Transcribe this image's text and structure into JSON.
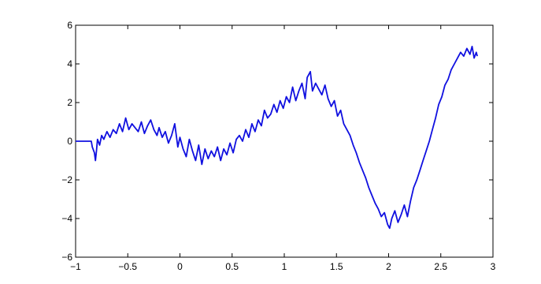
{
  "chart_data": {
    "type": "line",
    "title": "",
    "xlabel": "",
    "ylabel": "",
    "xlim": [
      -1,
      3
    ],
    "ylim": [
      -6,
      6
    ],
    "grid": false,
    "x_ticks": [
      -1,
      -0.5,
      0,
      0.5,
      1,
      1.5,
      2,
      2.5,
      3
    ],
    "x_tick_labels": [
      "−1",
      "−0.5",
      "0",
      "0.5",
      "1",
      "1.5",
      "2",
      "2.5",
      "3"
    ],
    "y_ticks": [
      -6,
      -4,
      -2,
      0,
      2,
      4,
      6
    ],
    "y_tick_labels": [
      "−6",
      "−4",
      "−2",
      "0",
      "2",
      "4",
      "6"
    ],
    "series": [
      {
        "color": "#1010e0",
        "x": [
          -1.0,
          -0.95,
          -0.9,
          -0.85,
          -0.84,
          -0.82,
          -0.81,
          -0.8,
          -0.79,
          -0.77,
          -0.75,
          -0.73,
          -0.7,
          -0.67,
          -0.64,
          -0.61,
          -0.58,
          -0.55,
          -0.52,
          -0.49,
          -0.46,
          -0.43,
          -0.4,
          -0.37,
          -0.34,
          -0.31,
          -0.28,
          -0.25,
          -0.22,
          -0.2,
          -0.17,
          -0.14,
          -0.11,
          -0.08,
          -0.05,
          -0.02,
          0.0,
          0.03,
          0.06,
          0.09,
          0.12,
          0.15,
          0.18,
          0.21,
          0.24,
          0.27,
          0.3,
          0.33,
          0.36,
          0.39,
          0.42,
          0.45,
          0.48,
          0.51,
          0.54,
          0.57,
          0.6,
          0.63,
          0.66,
          0.69,
          0.72,
          0.75,
          0.78,
          0.81,
          0.84,
          0.87,
          0.9,
          0.93,
          0.96,
          0.99,
          1.02,
          1.05,
          1.08,
          1.11,
          1.14,
          1.17,
          1.2,
          1.22,
          1.25,
          1.27,
          1.3,
          1.33,
          1.36,
          1.39,
          1.42,
          1.45,
          1.48,
          1.51,
          1.54,
          1.57,
          1.6,
          1.63,
          1.66,
          1.69,
          1.72,
          1.75,
          1.78,
          1.81,
          1.84,
          1.87,
          1.9,
          1.93,
          1.96,
          1.99,
          2.01,
          2.03,
          2.06,
          2.09,
          2.12,
          2.15,
          2.18,
          2.21,
          2.24,
          2.27,
          2.3,
          2.33,
          2.36,
          2.39,
          2.42,
          2.45,
          2.48,
          2.51,
          2.54,
          2.57,
          2.6,
          2.63,
          2.66,
          2.69,
          2.72,
          2.75,
          2.78,
          2.8,
          2.82,
          2.84,
          2.85
        ],
        "y": [
          0.0,
          0.0,
          0.0,
          0.0,
          -0.3,
          -0.6,
          -1.0,
          -0.5,
          0.1,
          -0.2,
          0.3,
          0.1,
          0.5,
          0.2,
          0.6,
          0.4,
          0.9,
          0.5,
          1.2,
          0.6,
          0.9,
          0.7,
          0.5,
          1.0,
          0.4,
          0.8,
          1.1,
          0.6,
          0.3,
          0.7,
          0.2,
          0.5,
          -0.1,
          0.3,
          0.9,
          -0.3,
          0.2,
          -0.4,
          -0.8,
          0.1,
          -0.5,
          -1.0,
          -0.2,
          -1.2,
          -0.4,
          -0.9,
          -0.5,
          -0.8,
          -0.3,
          -1.0,
          -0.4,
          -0.7,
          -0.1,
          -0.6,
          0.1,
          0.3,
          0.0,
          0.6,
          0.2,
          0.9,
          0.5,
          1.1,
          0.8,
          1.6,
          1.2,
          1.4,
          1.9,
          1.5,
          2.1,
          1.7,
          2.3,
          2.0,
          2.8,
          2.1,
          2.6,
          3.0,
          2.2,
          3.3,
          3.6,
          2.6,
          3.0,
          2.7,
          2.4,
          2.9,
          2.2,
          1.8,
          2.1,
          1.3,
          1.6,
          0.9,
          0.6,
          0.3,
          -0.2,
          -0.6,
          -1.1,
          -1.5,
          -1.9,
          -2.4,
          -2.8,
          -3.2,
          -3.5,
          -3.9,
          -3.7,
          -4.3,
          -4.5,
          -4.0,
          -3.6,
          -4.2,
          -3.8,
          -3.3,
          -3.9,
          -3.1,
          -2.4,
          -2.0,
          -1.5,
          -1.0,
          -0.5,
          0.0,
          0.6,
          1.2,
          1.9,
          2.3,
          2.9,
          3.2,
          3.7,
          4.0,
          4.3,
          4.6,
          4.4,
          4.8,
          4.5,
          4.9,
          4.3,
          4.6,
          4.4
        ]
      }
    ]
  }
}
